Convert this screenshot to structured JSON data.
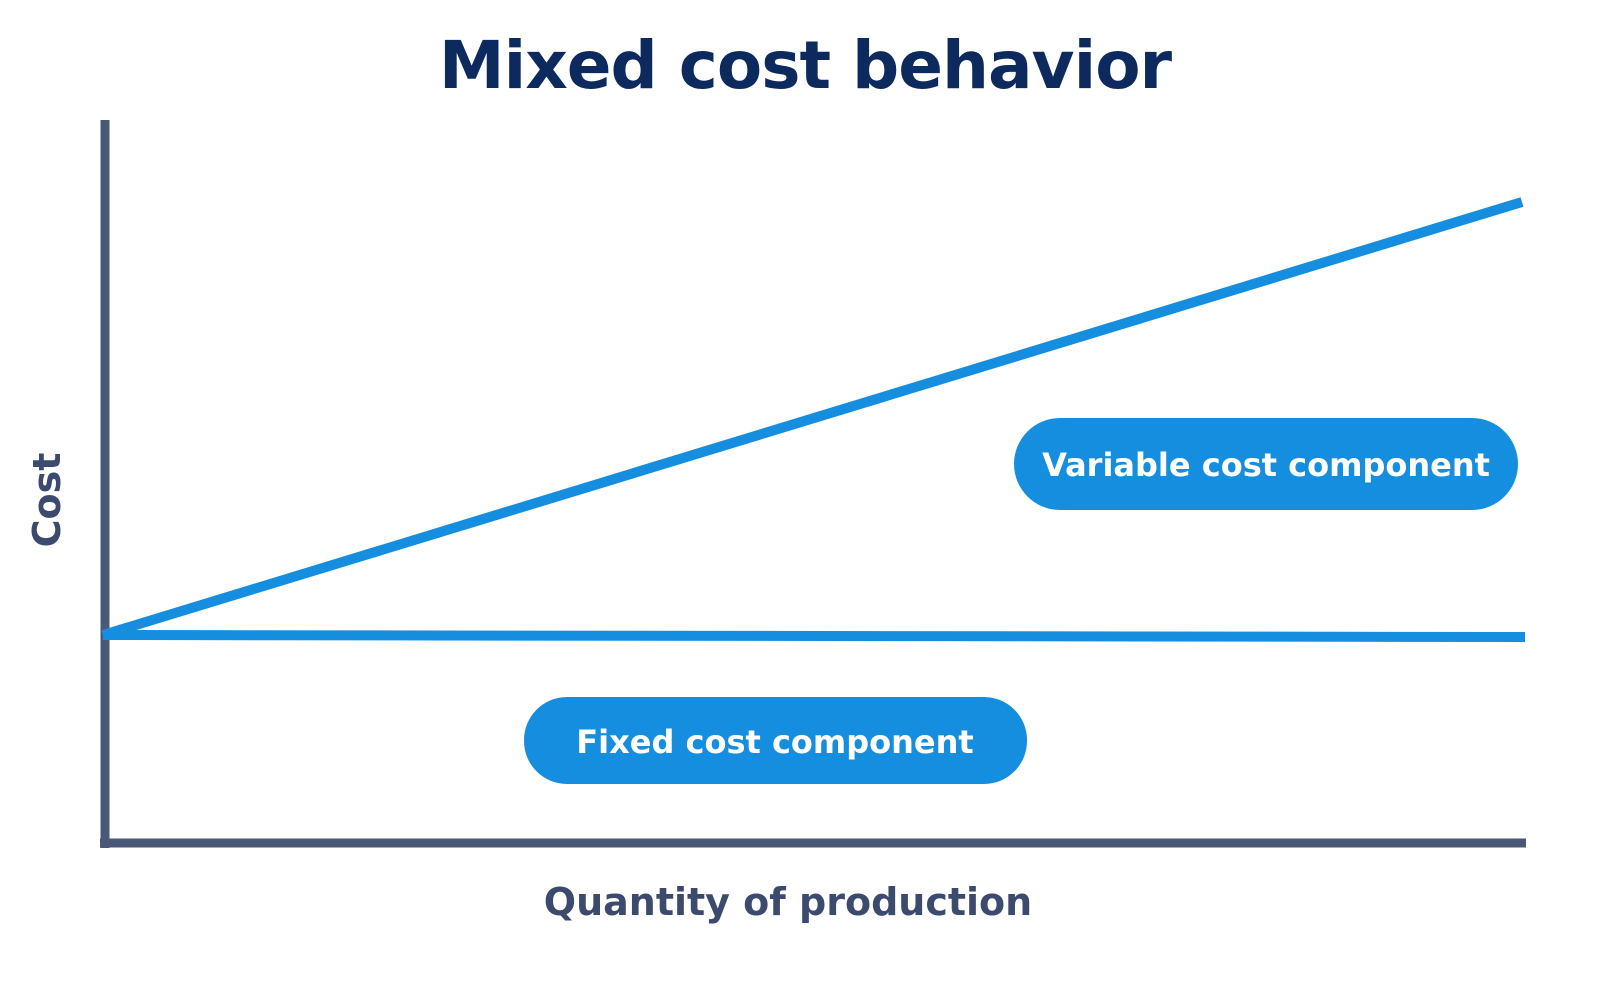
{
  "title": "Mixed cost behavior",
  "axes": {
    "y_label": "Cost",
    "x_label": "Quantity of production"
  },
  "labels": {
    "variable": "Variable cost component",
    "fixed": "Fixed cost component"
  },
  "colors": {
    "title": "#0d2a5e",
    "axis": "#4a5878",
    "axis_label": "#3c4a6e",
    "line": "#168ee0",
    "pill": "#168ee0",
    "pill_text": "#ffffff"
  }
}
